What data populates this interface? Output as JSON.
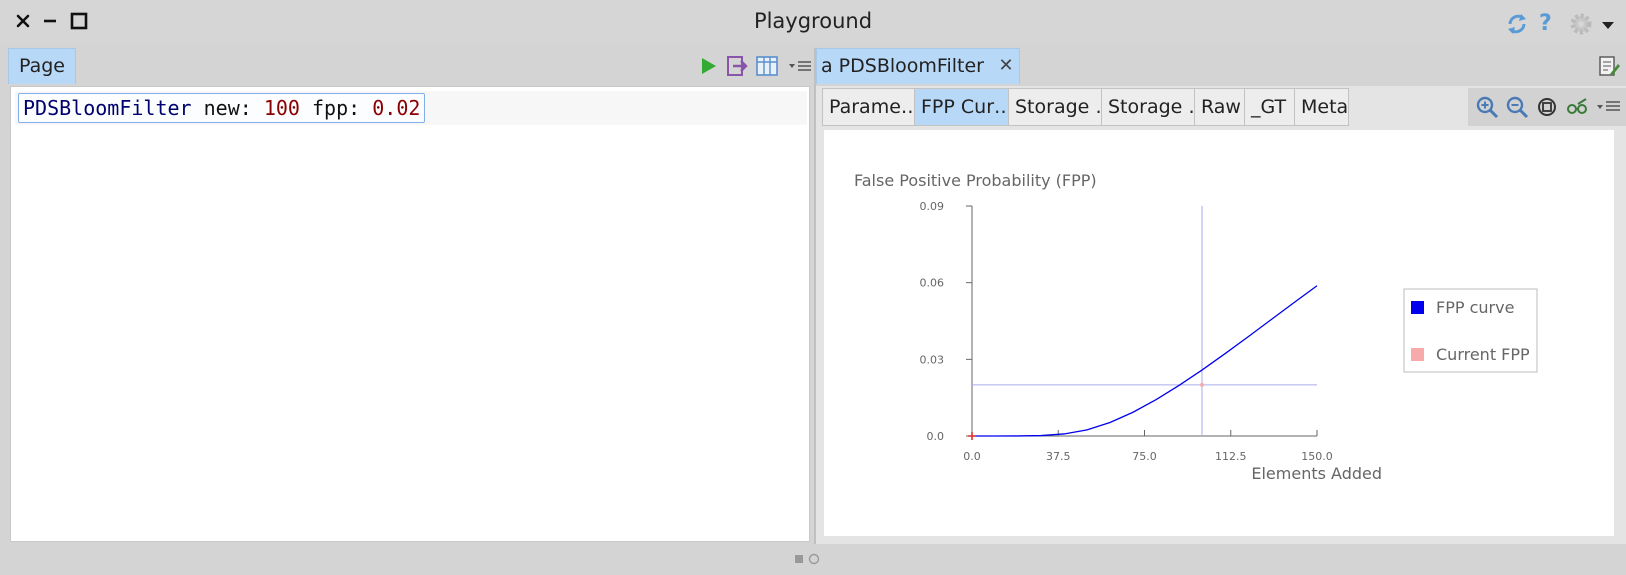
{
  "window": {
    "title": "Playground"
  },
  "left": {
    "tab_label": "Page",
    "code": {
      "receiver": "PDSBloomFilter",
      "kw1": "new:",
      "arg1": "100",
      "kw2": "fpp:",
      "arg2": "0.02"
    }
  },
  "right": {
    "tab_label": "a PDSBloomFilter",
    "subtabs": [
      "Parame…",
      "FPP Cur…",
      "Storage …",
      "Storage …",
      "Raw",
      "_GT",
      "Meta"
    ],
    "active_subtab": 1
  },
  "colors": {
    "tab_active": "#b8d8f8",
    "fpp_curve": "#0000ee",
    "current_fpp": "#f6aaaa",
    "guide_line": "#aaaaee",
    "axis": "#666666",
    "run_green": "#33aa33",
    "icon_blue": "#5b9bd5"
  },
  "chart_data": {
    "type": "line",
    "title": "False Positive Probability (FPP)",
    "xlabel": "Elements Added",
    "ylabel": "",
    "xlim": [
      0,
      150
    ],
    "ylim": [
      0,
      0.09
    ],
    "x_ticks": [
      "0.0",
      "37.5",
      "75.0",
      "112.5",
      "150.0"
    ],
    "y_ticks": [
      "0.0",
      "0.03",
      "0.06",
      "0.09"
    ],
    "x_tick_values": [
      0,
      37.5,
      75,
      112.5,
      150
    ],
    "y_tick_values": [
      0,
      0.03,
      0.06,
      0.09
    ],
    "series": [
      {
        "name": "FPP curve",
        "x": [
          0,
          10,
          20,
          30,
          40,
          50,
          60,
          70,
          80,
          90,
          100,
          110,
          120,
          130,
          140,
          150
        ],
        "y": [
          0,
          1e-07,
          1.5e-05,
          0.00017,
          0.0008,
          0.0024,
          0.0053,
          0.0093,
          0.0142,
          0.0198,
          0.0258,
          0.0322,
          0.0388,
          0.0455,
          0.0522,
          0.0588
        ]
      }
    ],
    "current_fpp": {
      "name": "Current FPP",
      "x": 100,
      "y": 0.02
    },
    "legend": {
      "position": "right",
      "entries": [
        "FPP curve",
        "Current FPP"
      ]
    },
    "grid": false
  }
}
